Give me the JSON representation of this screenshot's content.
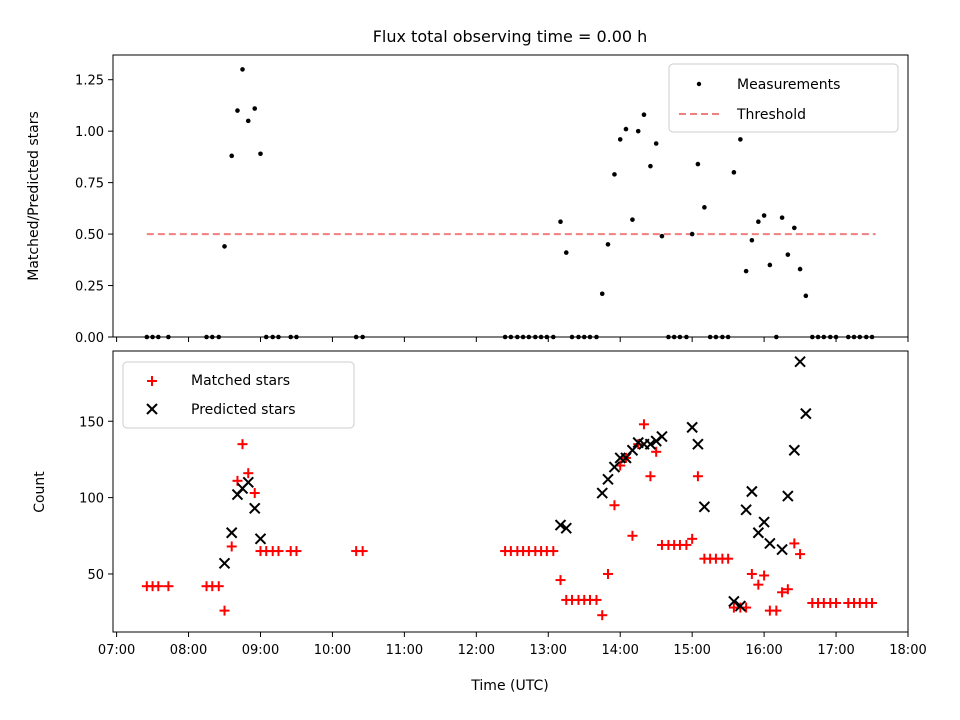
{
  "chart_data": {
    "type": "scatter",
    "title": "Flux total observing time = 0.00 h",
    "xlabel": "Time (UTC)",
    "x_ticks": [
      "07:00",
      "08:00",
      "09:00",
      "10:00",
      "11:00",
      "12:00",
      "13:00",
      "14:00",
      "15:00",
      "16:00",
      "17:00",
      "18:00"
    ],
    "x_range_hours": [
      6.95,
      18.0
    ],
    "top": {
      "ylabel": "Matched/Predicted stars",
      "ylim": [
        0,
        1.37
      ],
      "y_ticks": [
        "0.00",
        "0.25",
        "0.50",
        "0.75",
        "1.00",
        "1.25"
      ],
      "legend": {
        "measurements": "Measurements",
        "threshold": "Threshold"
      },
      "threshold": {
        "value": 0.5,
        "x_start": 7.42,
        "x_end": 17.55,
        "color": "#f08080"
      },
      "measurements": [
        [
          7.42,
          0
        ],
        [
          7.5,
          0
        ],
        [
          7.58,
          0
        ],
        [
          7.72,
          0
        ],
        [
          8.25,
          0
        ],
        [
          8.33,
          0
        ],
        [
          8.42,
          0
        ],
        [
          8.5,
          0.44
        ],
        [
          8.6,
          0.88
        ],
        [
          8.68,
          1.1
        ],
        [
          8.75,
          1.3
        ],
        [
          8.83,
          1.05
        ],
        [
          8.92,
          1.11
        ],
        [
          9.0,
          0.89
        ],
        [
          9.08,
          0
        ],
        [
          9.17,
          0
        ],
        [
          9.25,
          0
        ],
        [
          9.42,
          0
        ],
        [
          9.5,
          0
        ],
        [
          10.33,
          0
        ],
        [
          10.42,
          0
        ],
        [
          12.4,
          0
        ],
        [
          12.48,
          0
        ],
        [
          12.57,
          0
        ],
        [
          12.65,
          0
        ],
        [
          12.73,
          0
        ],
        [
          12.82,
          0
        ],
        [
          12.9,
          0
        ],
        [
          12.98,
          0
        ],
        [
          13.07,
          0
        ],
        [
          13.17,
          0.56
        ],
        [
          13.25,
          0.41
        ],
        [
          13.33,
          0
        ],
        [
          13.42,
          0
        ],
        [
          13.5,
          0
        ],
        [
          13.58,
          0
        ],
        [
          13.67,
          0
        ],
        [
          13.75,
          0.21
        ],
        [
          13.83,
          0.45
        ],
        [
          13.92,
          0.79
        ],
        [
          14.0,
          0.96
        ],
        [
          14.08,
          1.01
        ],
        [
          14.17,
          0.57
        ],
        [
          14.25,
          1.0
        ],
        [
          14.33,
          1.08
        ],
        [
          14.42,
          0.83
        ],
        [
          14.5,
          0.94
        ],
        [
          14.58,
          0.49
        ],
        [
          14.67,
          0
        ],
        [
          14.75,
          0
        ],
        [
          14.83,
          0
        ],
        [
          14.92,
          0
        ],
        [
          15.0,
          0.5
        ],
        [
          15.08,
          0.84
        ],
        [
          15.17,
          0.63
        ],
        [
          15.25,
          0
        ],
        [
          15.33,
          0
        ],
        [
          15.42,
          0
        ],
        [
          15.5,
          0
        ],
        [
          15.58,
          0.8
        ],
        [
          15.67,
          0.96
        ],
        [
          15.75,
          0.32
        ],
        [
          15.83,
          0.47
        ],
        [
          15.92,
          0.56
        ],
        [
          16.0,
          0.59
        ],
        [
          16.08,
          0.35
        ],
        [
          16.17,
          0
        ],
        [
          16.25,
          0.58
        ],
        [
          16.33,
          0.4
        ],
        [
          16.42,
          0.53
        ],
        [
          16.5,
          0.33
        ],
        [
          16.58,
          0.2
        ],
        [
          16.67,
          0
        ],
        [
          16.75,
          0
        ],
        [
          16.83,
          0
        ],
        [
          16.92,
          0
        ],
        [
          17.0,
          0
        ],
        [
          17.17,
          0
        ],
        [
          17.25,
          0
        ],
        [
          17.33,
          0
        ],
        [
          17.42,
          0
        ],
        [
          17.5,
          0
        ]
      ]
    },
    "bottom": {
      "ylabel": "Count",
      "ylim": [
        12,
        196
      ],
      "y_ticks": [
        "50",
        "100",
        "150"
      ],
      "legend": {
        "matched": "Matched stars",
        "predicted": "Predicted stars"
      },
      "matched": [
        [
          7.42,
          42
        ],
        [
          7.5,
          42
        ],
        [
          7.58,
          42
        ],
        [
          7.72,
          42
        ],
        [
          8.25,
          42
        ],
        [
          8.33,
          42
        ],
        [
          8.42,
          42
        ],
        [
          8.5,
          26
        ],
        [
          8.6,
          68
        ],
        [
          8.68,
          111
        ],
        [
          8.75,
          135
        ],
        [
          8.83,
          116
        ],
        [
          8.92,
          103
        ],
        [
          9.0,
          65
        ],
        [
          9.08,
          65
        ],
        [
          9.17,
          65
        ],
        [
          9.25,
          65
        ],
        [
          9.42,
          65
        ],
        [
          9.5,
          65
        ],
        [
          10.33,
          65
        ],
        [
          10.42,
          65
        ],
        [
          12.4,
          65
        ],
        [
          12.48,
          65
        ],
        [
          12.57,
          65
        ],
        [
          12.65,
          65
        ],
        [
          12.73,
          65
        ],
        [
          12.82,
          65
        ],
        [
          12.9,
          65
        ],
        [
          12.98,
          65
        ],
        [
          13.07,
          65
        ],
        [
          13.17,
          46
        ],
        [
          13.25,
          33
        ],
        [
          13.33,
          33
        ],
        [
          13.42,
          33
        ],
        [
          13.5,
          33
        ],
        [
          13.58,
          33
        ],
        [
          13.67,
          33
        ],
        [
          13.75,
          23
        ],
        [
          13.83,
          50
        ],
        [
          13.92,
          95
        ],
        [
          14.0,
          121
        ],
        [
          14.08,
          126
        ],
        [
          14.17,
          75
        ],
        [
          14.25,
          135
        ],
        [
          14.33,
          148
        ],
        [
          14.42,
          114
        ],
        [
          14.5,
          130
        ],
        [
          14.58,
          69
        ],
        [
          14.67,
          69
        ],
        [
          14.75,
          69
        ],
        [
          14.83,
          69
        ],
        [
          14.92,
          69
        ],
        [
          15.0,
          73
        ],
        [
          15.08,
          114
        ],
        [
          15.17,
          60
        ],
        [
          15.25,
          60
        ],
        [
          15.33,
          60
        ],
        [
          15.42,
          60
        ],
        [
          15.5,
          60
        ],
        [
          15.58,
          28
        ],
        [
          15.67,
          28
        ],
        [
          15.75,
          28
        ],
        [
          15.83,
          50
        ],
        [
          15.92,
          43
        ],
        [
          16.0,
          49
        ],
        [
          16.08,
          26
        ],
        [
          16.17,
          26
        ],
        [
          16.25,
          38
        ],
        [
          16.33,
          40
        ],
        [
          16.42,
          70
        ],
        [
          16.5,
          63
        ],
        [
          16.67,
          31
        ],
        [
          16.75,
          31
        ],
        [
          16.83,
          31
        ],
        [
          16.92,
          31
        ],
        [
          17.0,
          31
        ],
        [
          17.17,
          31
        ],
        [
          17.25,
          31
        ],
        [
          17.33,
          31
        ],
        [
          17.42,
          31
        ],
        [
          17.5,
          31
        ]
      ],
      "predicted": [
        [
          8.5,
          57
        ],
        [
          8.6,
          77
        ],
        [
          8.68,
          102
        ],
        [
          8.75,
          106
        ],
        [
          8.83,
          110
        ],
        [
          8.92,
          93
        ],
        [
          9.0,
          73
        ],
        [
          13.17,
          82
        ],
        [
          13.25,
          80
        ],
        [
          13.75,
          103
        ],
        [
          13.83,
          112
        ],
        [
          13.92,
          120
        ],
        [
          14.0,
          126
        ],
        [
          14.08,
          126
        ],
        [
          14.17,
          131
        ],
        [
          14.25,
          136
        ],
        [
          14.33,
          135
        ],
        [
          14.42,
          135
        ],
        [
          14.5,
          137
        ],
        [
          14.58,
          140
        ],
        [
          15.0,
          146
        ],
        [
          15.08,
          135
        ],
        [
          15.17,
          94
        ],
        [
          15.58,
          32
        ],
        [
          15.67,
          29
        ],
        [
          15.75,
          92
        ],
        [
          15.83,
          104
        ],
        [
          15.92,
          77
        ],
        [
          16.0,
          84
        ],
        [
          16.08,
          70
        ],
        [
          16.25,
          66
        ],
        [
          16.33,
          101
        ],
        [
          16.42,
          131
        ],
        [
          16.5,
          189
        ],
        [
          16.58,
          155
        ]
      ]
    },
    "colors": {
      "measurement": "#000000",
      "threshold": "#f08080",
      "matched": "#ff0000",
      "predicted": "#000000"
    }
  }
}
